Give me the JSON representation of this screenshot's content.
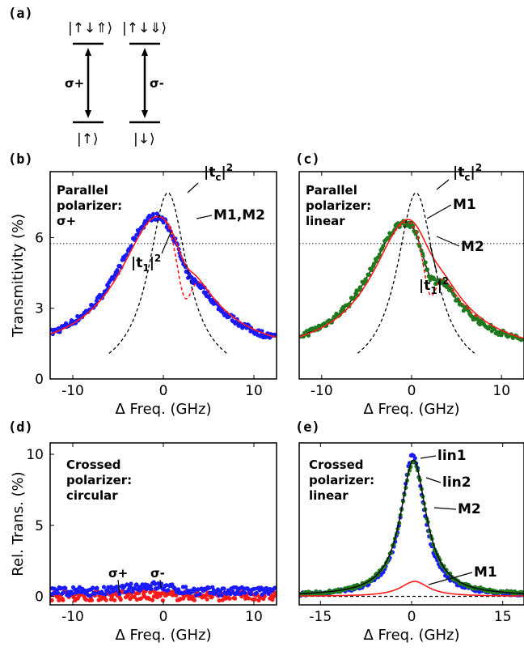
{
  "colors": {
    "blue": "#1a1aff",
    "green": "#1f7a1f",
    "red": "#ff1a1a",
    "black": "#000000"
  },
  "panel_a": {
    "label": "(a)",
    "levels": [
      {
        "ket": "|↑↓⇑⟩",
        "position": "upper-left"
      },
      {
        "ket": "|↑↓⇓⟩",
        "position": "upper-right"
      },
      {
        "ket": "|↑⟩",
        "position": "lower-left"
      },
      {
        "ket": "|↓⟩",
        "position": "lower-right"
      }
    ],
    "transitions": [
      {
        "label": "σ+"
      },
      {
        "label": "σ-"
      }
    ]
  },
  "chart_data": [
    {
      "panel": "(b)",
      "type": "scatter",
      "xlabel": "Δ Freq. (GHz)",
      "ylabel": "Transmitivity (%)",
      "xlim": [
        -12.5,
        12.5
      ],
      "ylim": [
        0,
        8.8
      ],
      "xticks": [
        -10,
        0,
        10
      ],
      "yticks": [
        0,
        3,
        6
      ],
      "hline": 5.75,
      "annotation_lines": [
        "Parallel",
        "polarizer:",
        "σ+"
      ],
      "curve_labels": {
        "tc": "|t",
        "t1": "|t",
        "m": "M1,M2",
        "sq": "2",
        "sub_c": "c",
        "sub_1": "1"
      },
      "series": [
        {
          "color": "blue",
          "kind": "points",
          "center": -0.9,
          "width": 5.2,
          "amp": 5.95,
          "base": 0.95,
          "dip": {
            "x": 2.6,
            "w": 1.1,
            "depth": 0.55
          }
        },
        {
          "color": "red",
          "kind": "solid",
          "center": -0.6,
          "width": 5.2,
          "amp": 5.95,
          "base": 0.95,
          "dip": {
            "x": 2.3,
            "w": 1.2,
            "depth": 0.55
          }
        },
        {
          "color": "red",
          "kind": "dashed",
          "center": -0.6,
          "width": 5.2,
          "amp": 5.95,
          "base": 0.95,
          "dip": {
            "x": 2.3,
            "w": 1.1,
            "depth": 2.0
          }
        },
        {
          "color": "black",
          "kind": "dashed",
          "center": 0.5,
          "width": 2.6,
          "amp": 7.9,
          "base": 0.0,
          "dip": null
        }
      ]
    },
    {
      "panel": "(c)",
      "type": "scatter",
      "xlabel": "Δ Freq. (GHz)",
      "ylabel": "",
      "xlim": [
        -12.5,
        12.5
      ],
      "ylim": [
        0,
        8.8
      ],
      "xticks": [
        -10,
        0,
        10
      ],
      "yticks": [],
      "hline": 5.75,
      "annotation_lines": [
        "Parallel",
        "polarizer:",
        "linear"
      ],
      "curve_labels": {
        "tc": "|t",
        "t1": "|t",
        "m1": "M1",
        "m2": "M2",
        "sq": "2",
        "sub_c": "c",
        "sub_1": "1"
      },
      "series": [
        {
          "color": "green",
          "kind": "points",
          "center": -0.8,
          "width": 5.0,
          "amp": 5.7,
          "base": 0.95,
          "dip": {
            "x": 2.0,
            "w": 1.1,
            "depth": 0.9
          }
        },
        {
          "color": "black",
          "kind": "solid",
          "center": -0.8,
          "width": 5.0,
          "amp": 5.7,
          "base": 0.95,
          "dip": {
            "x": 2.0,
            "w": 1.1,
            "depth": 0.9
          }
        },
        {
          "color": "red",
          "kind": "solid",
          "center": -0.3,
          "width": 5.0,
          "amp": 5.85,
          "base": 0.95,
          "dip": {
            "x": 2.0,
            "w": 1.5,
            "depth": 0.35
          }
        },
        {
          "color": "red",
          "kind": "dashed",
          "center": -0.5,
          "width": 5.0,
          "amp": 5.7,
          "base": 0.95,
          "dip": {
            "x": 2.0,
            "w": 1.0,
            "depth": 1.9
          }
        },
        {
          "color": "black",
          "kind": "dashed",
          "center": 0.5,
          "width": 2.6,
          "amp": 7.9,
          "base": 0.0,
          "dip": null
        }
      ]
    },
    {
      "panel": "(d)",
      "type": "scatter",
      "xlabel": "Δ Freq. (GHz)",
      "ylabel": "Rel. Trans. (%)",
      "xlim": [
        -12.5,
        12.5
      ],
      "ylim": [
        -0.6,
        10.8
      ],
      "xticks": [
        -10,
        0,
        10
      ],
      "yticks": [
        0,
        5,
        10
      ],
      "annotation_lines": [
        "Crossed",
        "polarizer:",
        "circular"
      ],
      "point_labels": [
        "σ+",
        "σ-"
      ],
      "series": [
        {
          "color": "red",
          "kind": "points",
          "level": 0.05,
          "noise": 0.35
        },
        {
          "color": "blue",
          "kind": "points",
          "level": 0.35,
          "noise": 0.3,
          "bump": {
            "x": -1.5,
            "w": 3,
            "amp": 0.4
          }
        }
      ]
    },
    {
      "panel": "(e)",
      "type": "scatter",
      "xlabel": "Δ Freq. (GHz)",
      "ylabel": "",
      "xlim": [
        -18.5,
        18.5
      ],
      "ylim": [
        -0.6,
        10.8
      ],
      "xticks": [
        -15,
        0,
        15
      ],
      "yticks": [],
      "annotation_lines": [
        "Crossed",
        "polarizer:",
        "linear"
      ],
      "curve_labels": [
        "lin1",
        "lin2",
        "M2",
        "M1"
      ],
      "series": [
        {
          "color": "blue",
          "kind": "points",
          "center": 0.2,
          "width": 2.3,
          "amp": 10.0
        },
        {
          "color": "green",
          "kind": "points",
          "center": 0.3,
          "width": 2.6,
          "amp": 9.5
        },
        {
          "color": "black",
          "kind": "solid",
          "center": 0.3,
          "width": 2.6,
          "amp": 9.6
        },
        {
          "color": "red",
          "kind": "solid",
          "center": 0.5,
          "width": 2.8,
          "amp": 1.05
        },
        {
          "color": "black",
          "kind": "dashed",
          "level": 0.0
        }
      ]
    }
  ]
}
